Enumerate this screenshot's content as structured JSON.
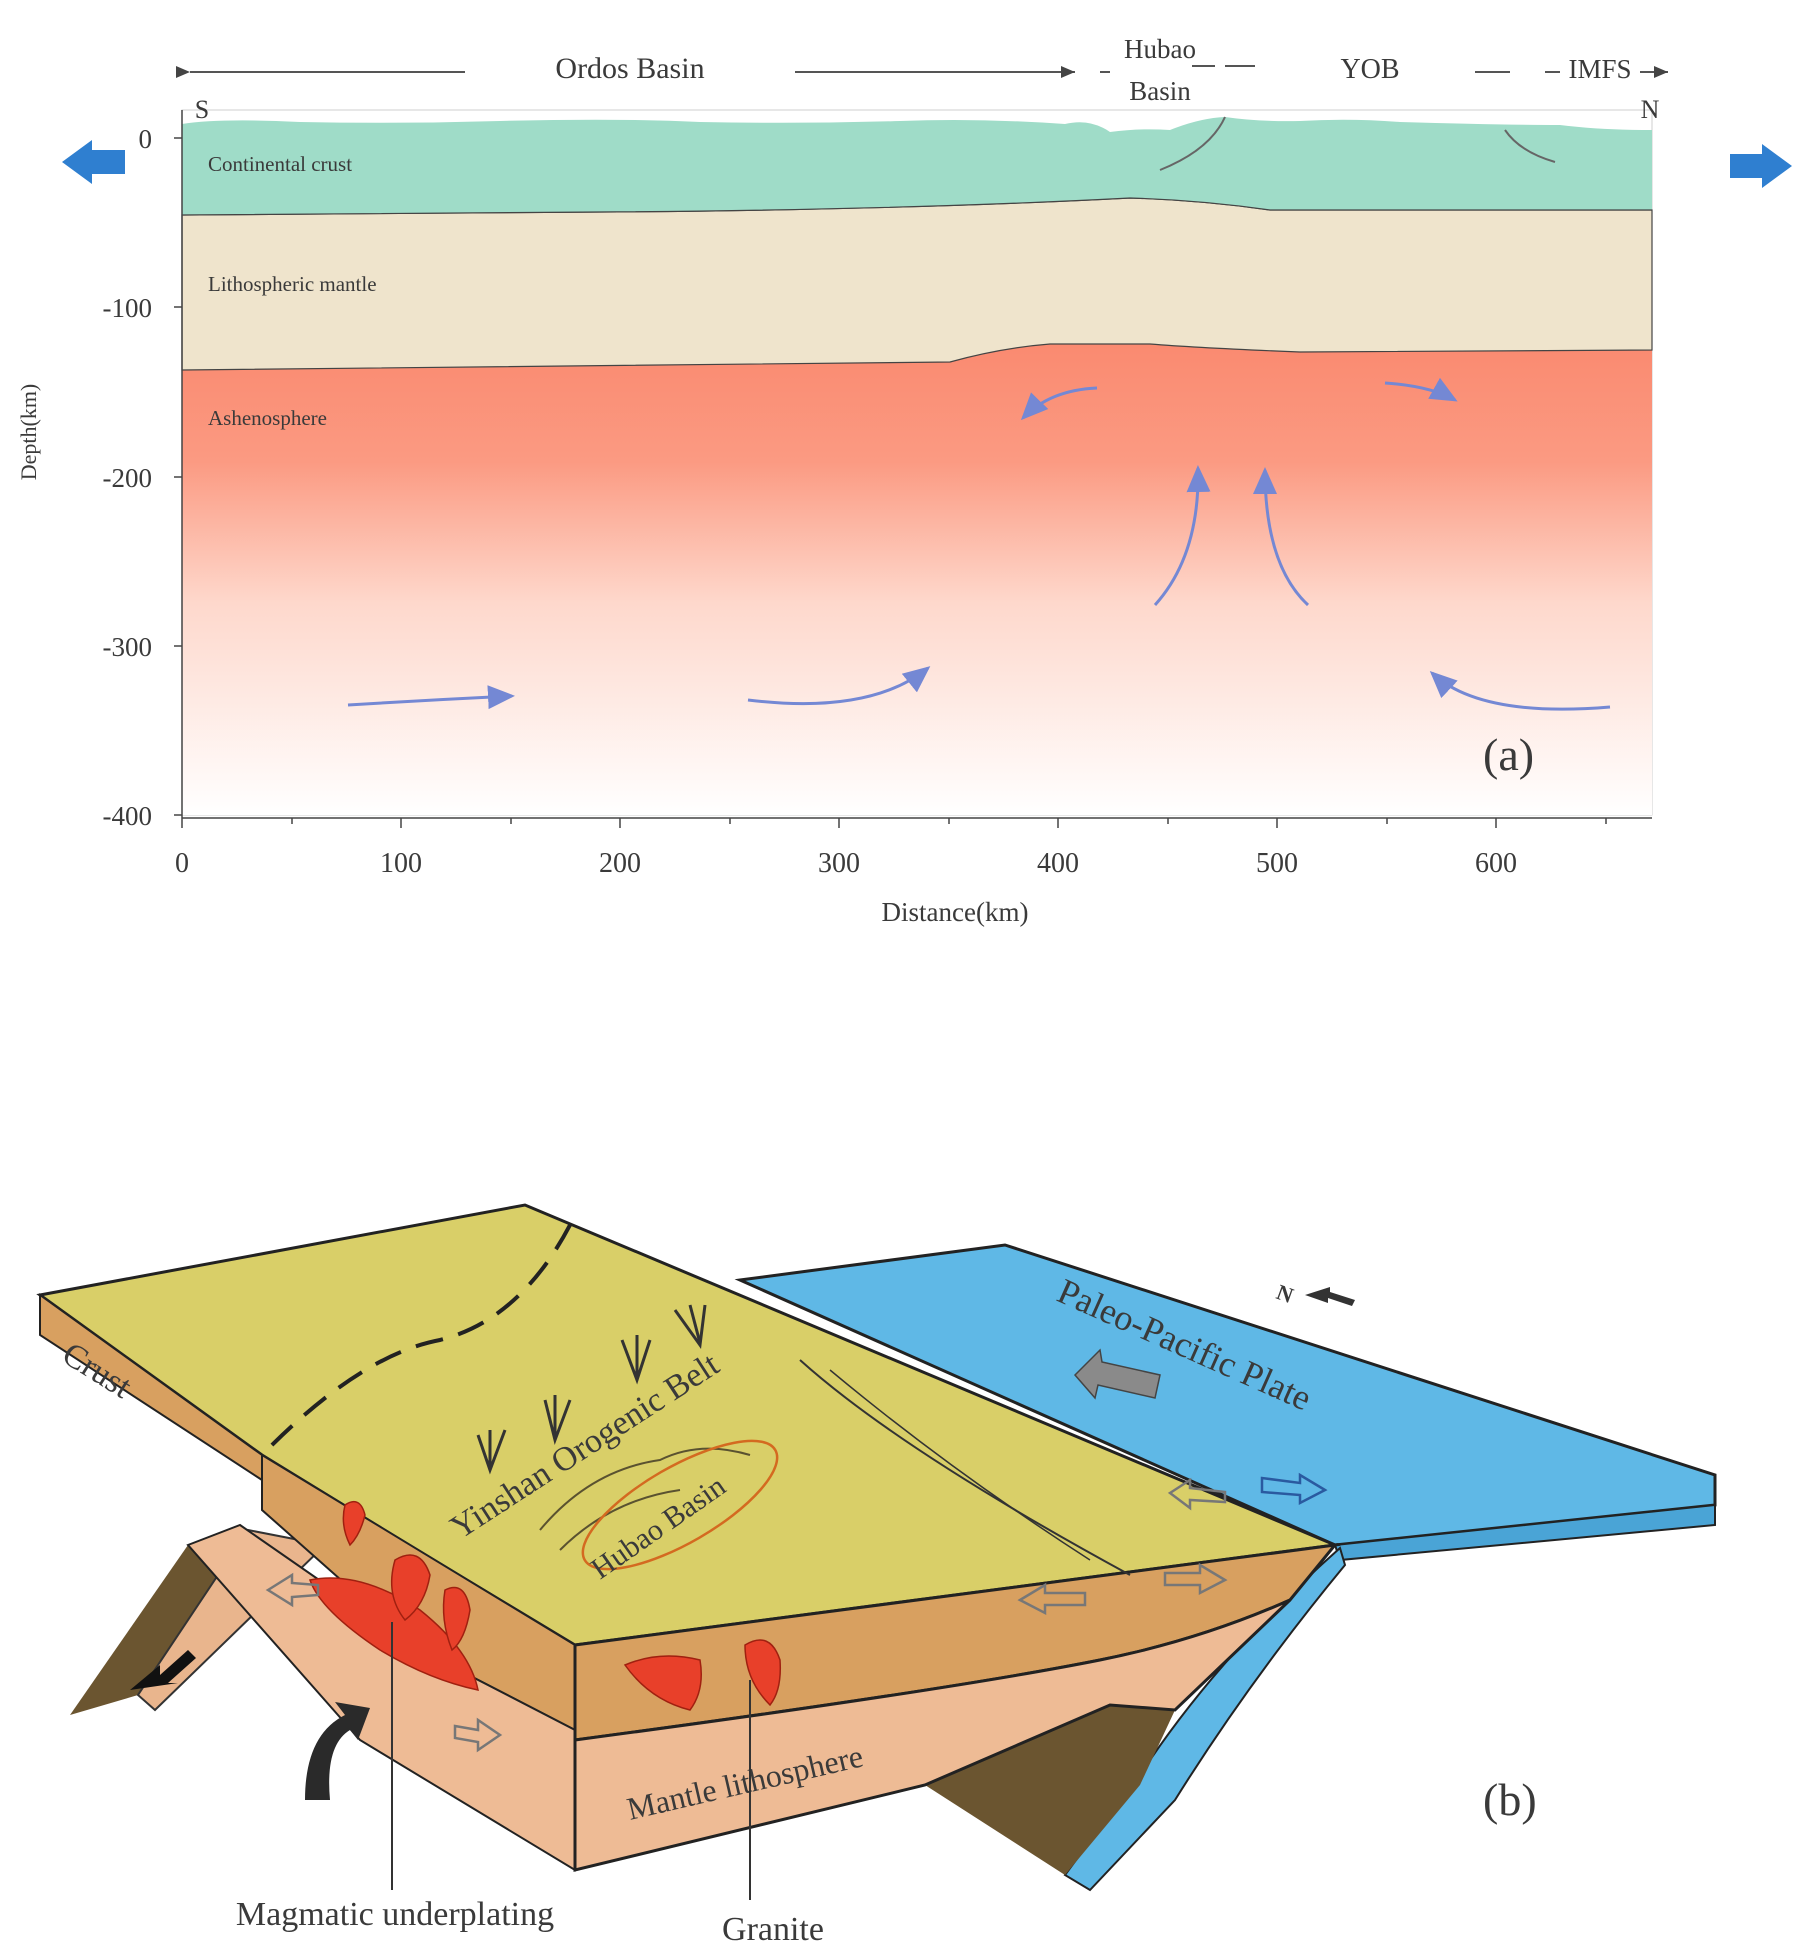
{
  "panel_a": {
    "panel_label": "(a)",
    "axis": {
      "ylabel": "Depth(km)",
      "xlabel": "Distance(km)",
      "y_ticks": [
        "0",
        "-100",
        "-200",
        "-300",
        "-400"
      ],
      "x_ticks": [
        "0",
        "100",
        "200",
        "300",
        "400",
        "500",
        "600"
      ],
      "x_range_km": [
        0,
        670
      ],
      "y_range_km": [
        0,
        -400
      ]
    },
    "top": {
      "ordos_basin": "Ordos Basin",
      "hubao_basin_line1": "Hubao",
      "hubao_basin_line2": "Basin",
      "yob": "YOB",
      "imfs": "IMFS",
      "south": "S",
      "north": "N"
    },
    "layers": {
      "crust": "Continental crust",
      "mantle": "Lithospheric mantle",
      "asthenosphere": "Ashenosphere"
    },
    "colors": {
      "crust": "#9fdcc8",
      "mantle": "#efe4cc",
      "asthenosphere_top": "#fa8a70",
      "asthenosphere_bottom": "#ffffff",
      "flow_arrow": "#7488d4",
      "extension_arrow": "#2f7fd0"
    }
  },
  "panel_b": {
    "panel_label": "(b)",
    "labels": {
      "crust": "Crust",
      "orogenic_belt": "Yinshan Orogenic Belt",
      "hubao_basin": "Hubao Basin",
      "plate": "Paleo-Pacific Plate",
      "mantle": "Mantle lithosphere",
      "magmatic": "Magmatic underplating",
      "granite": "Granite",
      "north": "N"
    },
    "colors": {
      "surface": "#d9cf68",
      "crust_side": "#d8a060",
      "mantle_side": "#eebb95",
      "ocean_plate": "#5fb8e6",
      "magma": "#e8402a",
      "slab_dark": "#6b5530"
    }
  }
}
